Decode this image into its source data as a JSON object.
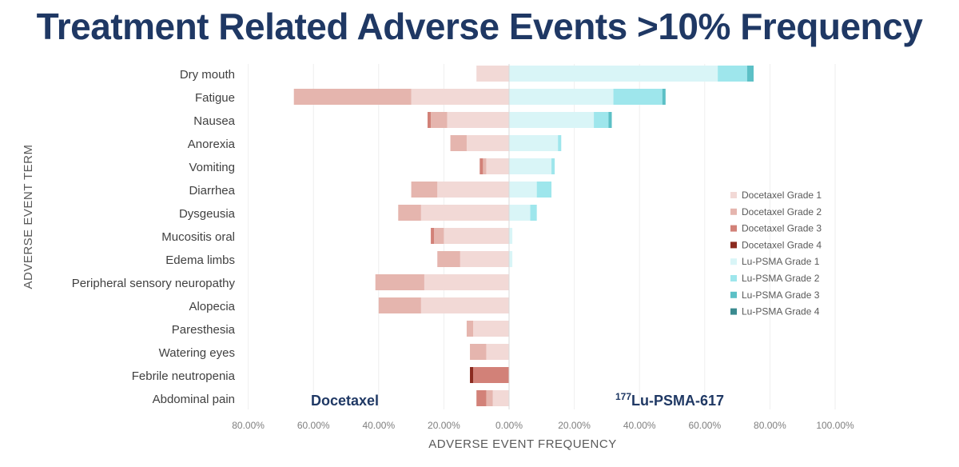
{
  "title": "Treatment Related Adverse Events >10% Frequency",
  "chart_data": {
    "type": "bar",
    "orientation": "horizontal-diverging",
    "title": "Treatment Related Adverse Events >10% Frequency",
    "xlabel": "ADVERSE EVENT FREQUENCY",
    "ylabel": "ADVERSE EVENT TERM",
    "xlim": [
      -0.8,
      1.0
    ],
    "x_ticks": [
      "80.00%",
      "60.00%",
      "40.00%",
      "20.00%",
      "0.00%",
      "20.00%",
      "40.00%",
      "60.00%",
      "80.00%",
      "100.00%"
    ],
    "left_label": "Docetaxel",
    "right_label_sup": "177",
    "right_label": "Lu-PSMA-617",
    "grid": "vertical",
    "legend_position": "right",
    "categories": [
      "Dry mouth",
      "Fatigue",
      "Nausea",
      "Anorexia",
      "Vomiting",
      "Diarrhea",
      "Dysgeusia",
      "Mucositis oral",
      "Edema limbs",
      "Peripheral sensory neuropathy",
      "Alopecia",
      "Paresthesia",
      "Watering eyes",
      "Febrile neutropenia",
      "Abdominal pain"
    ],
    "series": [
      {
        "name": "Docetaxel Grade 1",
        "color": "#f2d9d6",
        "values": [
          -0.1,
          -0.3,
          -0.19,
          -0.13,
          -0.07,
          -0.22,
          -0.27,
          -0.2,
          -0.15,
          -0.26,
          -0.27,
          -0.11,
          -0.07,
          0,
          -0.05
        ]
      },
      {
        "name": "Docetaxel Grade 2",
        "color": "#e5b5ae",
        "values": [
          0,
          -0.36,
          -0.05,
          -0.05,
          -0.01,
          -0.08,
          -0.07,
          -0.03,
          -0.07,
          -0.15,
          -0.13,
          -0.02,
          -0.05,
          0,
          -0.02
        ]
      },
      {
        "name": "Docetaxel Grade 3",
        "color": "#d28178",
        "values": [
          0,
          0,
          -0.01,
          0,
          -0.01,
          0,
          0,
          -0.01,
          0,
          0,
          0,
          0,
          0,
          -0.11,
          -0.03
        ]
      },
      {
        "name": "Docetaxel Grade 4",
        "color": "#8b2a1f",
        "values": [
          0,
          0,
          0,
          0,
          0,
          0,
          0,
          0,
          0,
          0,
          0,
          0,
          0,
          -0.01,
          0
        ]
      },
      {
        "name": "Lu-PSMA Grade 1",
        "color": "#d9f5f7",
        "values": [
          0.64,
          0.32,
          0.26,
          0.15,
          0.13,
          0.085,
          0.065,
          0.01,
          0.01,
          0,
          0,
          0,
          0,
          0,
          0
        ]
      },
      {
        "name": "Lu-PSMA Grade 2",
        "color": "#9ee6ec",
        "values": [
          0.09,
          0.15,
          0.045,
          0.01,
          0.01,
          0.045,
          0.02,
          0,
          0,
          0,
          0,
          0,
          0,
          0,
          0
        ]
      },
      {
        "name": "Lu-PSMA Grade 3",
        "color": "#5cc0c6",
        "values": [
          0.02,
          0.01,
          0.01,
          0,
          0,
          0,
          0,
          0,
          0,
          0,
          0,
          0,
          0,
          0,
          0
        ]
      },
      {
        "name": "Lu-PSMA Grade 4",
        "color": "#3a8a8f",
        "values": [
          0,
          0,
          0,
          0,
          0,
          0,
          0,
          0,
          0,
          0,
          0,
          0,
          0,
          0,
          0
        ]
      }
    ]
  }
}
